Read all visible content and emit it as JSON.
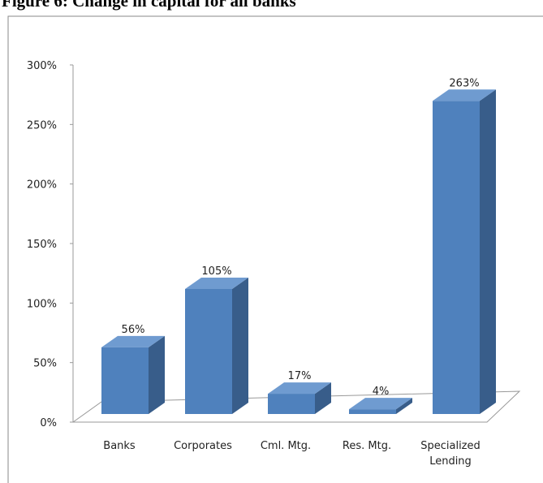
{
  "chart_data": {
    "type": "bar3d",
    "title": "Figure 6: Change in capital for all banks",
    "categories": [
      "Banks",
      "Corporates",
      "Cml. Mtg.",
      "Res. Mtg.",
      "Specialized Lending"
    ],
    "values": [
      56,
      105,
      17,
      4,
      263
    ],
    "value_labels": [
      "56%",
      "105%",
      "17%",
      "4%",
      "263%"
    ],
    "color": "#4f81bd",
    "ylim": [
      0,
      300
    ],
    "yticks": [
      {
        "value": 0,
        "label": "0%"
      },
      {
        "value": 50,
        "label": "50%"
      },
      {
        "value": 100,
        "label": "100%"
      },
      {
        "value": 150,
        "label": "150%"
      },
      {
        "value": 200,
        "label": "200%"
      },
      {
        "value": 250,
        "label": "250%"
      },
      {
        "value": 300,
        "label": "300%"
      }
    ]
  }
}
